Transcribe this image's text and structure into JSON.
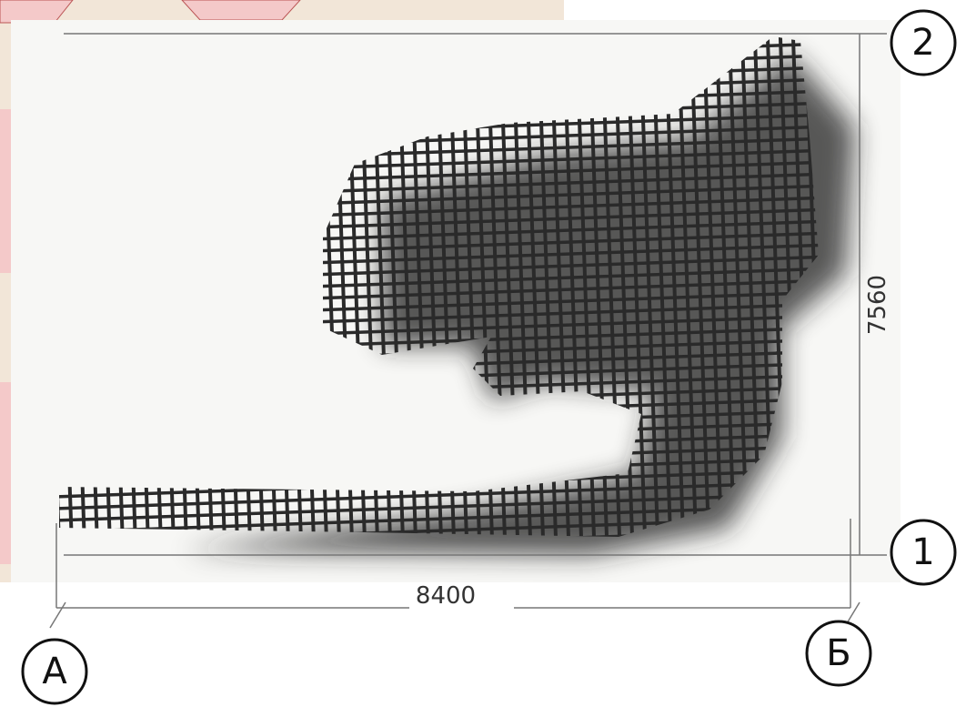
{
  "axes": {
    "top": "2",
    "bottom": "1",
    "left": "А",
    "right": "Б"
  },
  "dimensions": {
    "width": 8400,
    "height": 7560
  }
}
